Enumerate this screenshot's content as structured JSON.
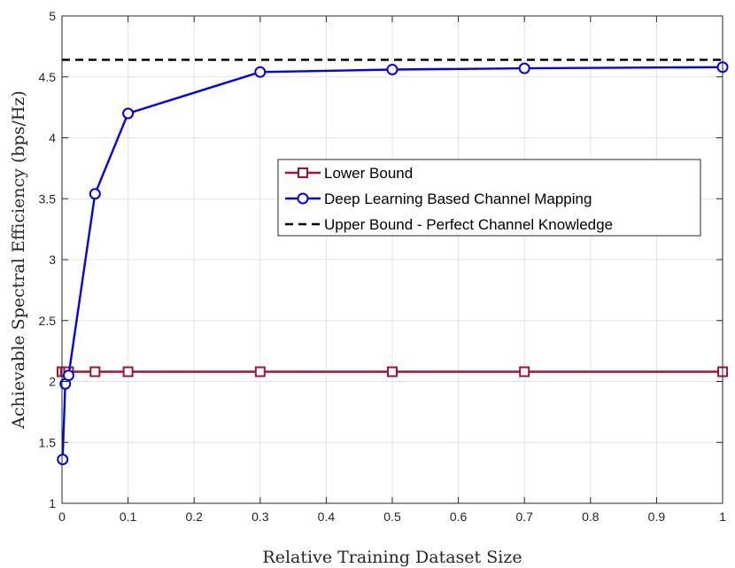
{
  "chart_data": {
    "type": "line",
    "title": "",
    "xlabel": "Relative Training Dataset Size",
    "ylabel": "Achievable Spectral Efficiency (bps/Hz)",
    "xlim": [
      0,
      1
    ],
    "ylim": [
      1,
      5
    ],
    "xticks": [
      0,
      0.1,
      0.2,
      0.3,
      0.4,
      0.5,
      0.6,
      0.7,
      0.8,
      0.9,
      1
    ],
    "xtick_labels": [
      "0",
      "0.1",
      "0.2",
      "0.3",
      "0.4",
      "0.5",
      "0.6",
      "0.7",
      "0.8",
      "0.9",
      "1"
    ],
    "yticks": [
      1,
      1.5,
      2,
      2.5,
      3,
      3.5,
      4,
      4.5,
      5
    ],
    "ytick_labels": [
      "1",
      "1.5",
      "2",
      "2.5",
      "3",
      "3.5",
      "4",
      "4.5",
      "5"
    ],
    "grid": true,
    "legend_position": "center-right",
    "series": [
      {
        "name": "Lower Bound",
        "color": "#a2142f",
        "marker": "square",
        "line_style": "solid",
        "x": [
          0,
          0.005,
          0.01,
          0.05,
          0.1,
          0.3,
          0.5,
          0.7,
          1
        ],
        "y": [
          2.08,
          2.08,
          2.08,
          2.08,
          2.08,
          2.08,
          2.08,
          2.08,
          2.08
        ]
      },
      {
        "name": "Deep Learning Based Channel Mapping",
        "color": "#0000ff",
        "marker": "circle",
        "line_style": "solid",
        "x": [
          0.001,
          0.005,
          0.01,
          0.05,
          0.1,
          0.3,
          0.5,
          0.7,
          1
        ],
        "y": [
          1.36,
          1.98,
          2.05,
          3.54,
          4.2,
          4.54,
          4.56,
          4.57,
          4.58
        ]
      },
      {
        "name": "Upper Bound - Perfect Channel Knowledge",
        "color": "#000000",
        "marker": "none",
        "line_style": "dashed",
        "x": [
          0,
          1
        ],
        "y": [
          4.64,
          4.64
        ]
      }
    ]
  }
}
